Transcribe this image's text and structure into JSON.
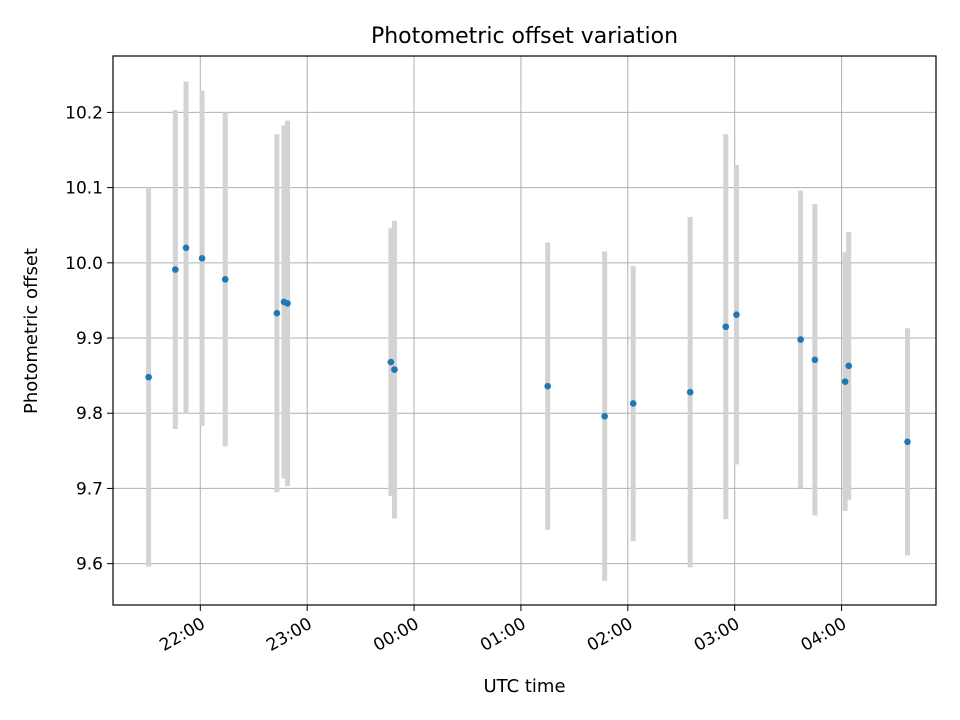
{
  "chart_data": {
    "type": "scatter",
    "title": "Photometric offset variation",
    "xlabel": "UTC time",
    "ylabel": "Photometric offset",
    "x_unit": "UTC",
    "xlim": [
      "21:11",
      "04:53"
    ],
    "ylim": [
      9.545,
      10.275
    ],
    "grid": true,
    "legend": "none",
    "x_ticks": [
      {
        "value": "22:00",
        "label": "22:00"
      },
      {
        "value": "23:00",
        "label": "23:00"
      },
      {
        "value": "00:00",
        "label": "00:00"
      },
      {
        "value": "01:00",
        "label": "01:00"
      },
      {
        "value": "02:00",
        "label": "02:00"
      },
      {
        "value": "03:00",
        "label": "03:00"
      },
      {
        "value": "04:00",
        "label": "04:00"
      }
    ],
    "y_ticks": [
      {
        "value": 9.6,
        "label": "9.6"
      },
      {
        "value": 9.7,
        "label": "9.7"
      },
      {
        "value": 9.8,
        "label": "9.8"
      },
      {
        "value": 9.9,
        "label": "9.9"
      },
      {
        "value": 10.0,
        "label": "10.0"
      },
      {
        "value": 10.1,
        "label": "10.1"
      },
      {
        "value": 10.2,
        "label": "10.2"
      }
    ],
    "series": [
      {
        "points": [
          {
            "x": "21:31",
            "y": 9.848,
            "err": 0.252
          },
          {
            "x": "21:46",
            "y": 9.991,
            "err": 0.212
          },
          {
            "x": "21:52",
            "y": 10.02,
            "err": 0.221
          },
          {
            "x": "22:01",
            "y": 10.006,
            "err": 0.223
          },
          {
            "x": "22:14",
            "y": 9.978,
            "err": 0.222
          },
          {
            "x": "22:43",
            "y": 9.933,
            "err": 0.238
          },
          {
            "x": "22:47",
            "y": 9.948,
            "err": 0.235
          },
          {
            "x": "22:49",
            "y": 9.946,
            "err": 0.243
          },
          {
            "x": "23:47",
            "y": 9.868,
            "err": 0.178
          },
          {
            "x": "23:49",
            "y": 9.858,
            "err": 0.198
          },
          {
            "x": "01:15",
            "y": 9.836,
            "err": 0.191
          },
          {
            "x": "01:47",
            "y": 9.796,
            "err": 0.219
          },
          {
            "x": "02:03",
            "y": 9.813,
            "err": 0.183
          },
          {
            "x": "02:35",
            "y": 9.828,
            "err": 0.233
          },
          {
            "x": "02:55",
            "y": 9.915,
            "err": 0.256
          },
          {
            "x": "03:01",
            "y": 9.931,
            "err": 0.199
          },
          {
            "x": "03:37",
            "y": 9.898,
            "err": 0.198
          },
          {
            "x": "03:45",
            "y": 9.871,
            "err": 0.207
          },
          {
            "x": "04:02",
            "y": 9.842,
            "err": 0.172
          },
          {
            "x": "04:04",
            "y": 9.863,
            "err": 0.178
          },
          {
            "x": "04:37",
            "y": 9.762,
            "err": 0.151
          }
        ]
      }
    ],
    "colors": {
      "marker": "#1f77b4",
      "errorbar": "#d3d3d3",
      "grid": "#b0b0b0",
      "axes": "#000000"
    }
  }
}
